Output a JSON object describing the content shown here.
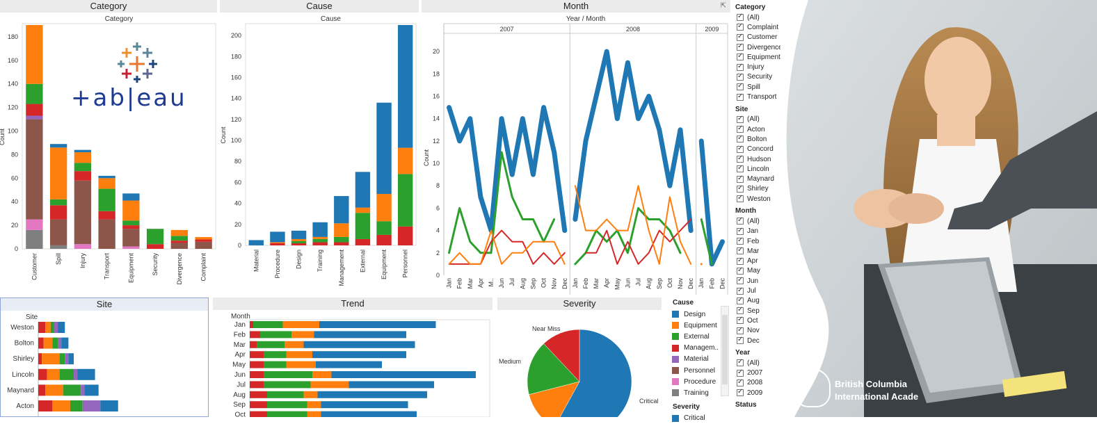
{
  "colors": {
    "Design": "#1f77b4",
    "Equipment": "#ff7f0e",
    "External": "#2ca02c",
    "Management": "#d62728",
    "Material": "#9467bd",
    "Personnel": "#8c564b",
    "Procedure": "#e377c2",
    "Training": "#7f7f7f",
    "panel_title_bg": "#ebebeb",
    "tableau_blue": "#1f3a93"
  },
  "logo": {
    "wordmark": "+ab|eau"
  },
  "category_panel": {
    "title": "Category",
    "chart_data": {
      "type": "bar",
      "subtitle": "Category",
      "ylabel": "Count",
      "ylim": [
        0,
        190
      ],
      "yticks": [
        "0",
        "20",
        "40",
        "60",
        "80",
        "100",
        "120",
        "140",
        "160",
        "180"
      ],
      "categories": [
        "Customer",
        "Spill",
        "Injury",
        "Transport",
        "Equipment",
        "Security",
        "Divergence",
        "Complaint"
      ],
      "series_order": [
        "Training",
        "Procedure",
        "Personnel",
        "Material",
        "Management",
        "External",
        "Equipment",
        "Design"
      ],
      "stacks": [
        {
          "Training": 16,
          "Procedure": 9,
          "Personnel": 85,
          "Material": 3,
          "Management": 10,
          "External": 17,
          "Equipment": 50
        },
        {
          "Training": 3,
          "Personnel": 22,
          "Management": 12,
          "External": 5,
          "Equipment": 44,
          "Design": 3
        },
        {
          "Procedure": 4,
          "Personnel": 54,
          "Management": 8,
          "External": 7,
          "Equipment": 9,
          "Design": 2
        },
        {
          "Personnel": 25,
          "Management": 7,
          "External": 19,
          "Equipment": 9,
          "Design": 2
        },
        {
          "Procedure": 2,
          "Personnel": 15,
          "Management": 3,
          "External": 4,
          "Equipment": 17,
          "Design": 6
        },
        {
          "Management": 4,
          "External": 13
        },
        {
          "Personnel": 5,
          "Management": 2,
          "External": 4,
          "Equipment": 5
        },
        {
          "Personnel": 6,
          "Management": 2,
          "Equipment": 2
        }
      ]
    }
  },
  "cause_panel": {
    "title": "Cause",
    "chart_data": {
      "type": "bar",
      "subtitle": "Cause",
      "ylabel": "Count",
      "ylim": [
        0,
        210
      ],
      "yticks": [
        "0",
        "20",
        "40",
        "60",
        "80",
        "100",
        "120",
        "140",
        "160",
        "180",
        "200"
      ],
      "categories": [
        "Material",
        "Procedure",
        "Design",
        "Training",
        "Management",
        "External",
        "Equipment",
        "Personnel"
      ],
      "series_order": [
        "Management",
        "External",
        "Equipment",
        "Design"
      ],
      "stacks": [
        {
          "Design": 5
        },
        {
          "Management": 2,
          "Equipment": 1,
          "Design": 10
        },
        {
          "Management": 2,
          "External": 2,
          "Equipment": 2,
          "Design": 8
        },
        {
          "Management": 3,
          "External": 3,
          "Equipment": 2,
          "Design": 14
        },
        {
          "Management": 3,
          "External": 5,
          "Equipment": 13,
          "Design": 26
        },
        {
          "Management": 6,
          "External": 25,
          "Equipment": 5,
          "Design": 34
        },
        {
          "Management": 10,
          "External": 13,
          "Equipment": 26,
          "Design": 87
        },
        {
          "Management": 18,
          "External": 50,
          "Equipment": 25,
          "Design": 117
        }
      ]
    }
  },
  "month_panel": {
    "title": "Month",
    "chart_data": {
      "type": "line",
      "subtitle": "Year  /  Month",
      "ylabel": "Count",
      "ylim": [
        0,
        21
      ],
      "yticks": [
        "0",
        "2",
        "4",
        "6",
        "8",
        "10",
        "12",
        "14",
        "16",
        "18",
        "20"
      ],
      "years": [
        {
          "label": "2007",
          "months": [
            "Jan",
            "Feb",
            "Mar",
            "Apr",
            "M..",
            "Jun",
            "Jul",
            "Aug",
            "Sep",
            "Oct",
            "Nov",
            "Dec"
          ]
        },
        {
          "label": "2008",
          "months": [
            "Jan",
            "Feb",
            "Mar",
            "Apr",
            "May",
            "Jun",
            "Jul",
            "Aug",
            "Sep",
            "Oct",
            "Nov",
            "Dec"
          ]
        },
        {
          "label": "2009",
          "months": [
            "Jan",
            "Feb",
            "Dec"
          ]
        }
      ],
      "series": [
        {
          "name": "Design",
          "width": 7,
          "values": [
            [
              15,
              12,
              14,
              7,
              4,
              14,
              9,
              14,
              9,
              15,
              11,
              4
            ],
            [
              5,
              12,
              16,
              20,
              14,
              19,
              14,
              16,
              13,
              8,
              13,
              4
            ],
            [
              12,
              1,
              3
            ]
          ]
        },
        {
          "name": "External",
          "width": 3,
          "values": [
            [
              2,
              6,
              3,
              2,
              2,
              11,
              7,
              5,
              5,
              3,
              5,
              null
            ],
            [
              1,
              2,
              4,
              3,
              4,
              2,
              6,
              5,
              5,
              4,
              2,
              null
            ],
            [
              5,
              1,
              null
            ]
          ]
        },
        {
          "name": "Management",
          "width": 2,
          "values": [
            [
              1,
              1,
              1,
              1,
              3,
              4,
              3,
              3,
              1,
              2,
              1,
              2
            ],
            [
              null,
              2,
              2,
              4,
              1,
              3,
              1,
              2,
              4,
              3,
              4,
              5
            ],
            [
              null,
              null,
              null
            ]
          ]
        },
        {
          "name": "Equipment",
          "width": 2,
          "values": [
            [
              1,
              2,
              1,
              1,
              4,
              1,
              2,
              2,
              3,
              3,
              3,
              1
            ],
            [
              8,
              4,
              4,
              5,
              4,
              4,
              8,
              4,
              1,
              7,
              3,
              1
            ],
            [
              1,
              null,
              null
            ]
          ]
        }
      ]
    }
  },
  "site_panel": {
    "title": "Site",
    "chart_data": {
      "type": "bar",
      "orientation": "horizontal",
      "subtitle": "Site",
      "categories": [
        "Weston",
        "Bolton",
        "Shirley",
        "Lincoln",
        "Maynard",
        "Acton"
      ],
      "series_order": [
        "Management",
        "Equipment",
        "External",
        "Material",
        "Design"
      ],
      "stacks": [
        {
          "Management": 4,
          "Equipment": 3,
          "External": 2,
          "Material": 2,
          "Design": 4
        },
        {
          "Management": 3,
          "Equipment": 5,
          "External": 3,
          "Material": 2,
          "Design": 4
        },
        {
          "Management": 2,
          "Equipment": 10,
          "External": 3,
          "Material": 2,
          "Design": 3
        },
        {
          "Management": 5,
          "Equipment": 7,
          "External": 8,
          "Material": 2,
          "Design": 10
        },
        {
          "Management": 4,
          "Equipment": 10,
          "External": 10,
          "Material": 2,
          "Design": 8
        },
        {
          "Management": 8,
          "Equipment": 10,
          "External": 7,
          "Material": 10,
          "Design": 10
        }
      ]
    }
  },
  "trend_panel": {
    "title": "Trend",
    "chart_data": {
      "type": "bar",
      "orientation": "horizontal",
      "subtitle": "Month",
      "categories": [
        "Jan",
        "Feb",
        "Mar",
        "Apr",
        "May",
        "Jun",
        "Jul",
        "Aug",
        "Sep",
        "Oct"
      ],
      "series_order": [
        "Management",
        "External",
        "Equipment",
        "Design"
      ],
      "stacks": [
        {
          "Management": 2,
          "External": 17,
          "Equipment": 21,
          "Design": 67
        },
        {
          "Management": 6,
          "External": 18,
          "Equipment": 13,
          "Design": 53
        },
        {
          "Management": 4,
          "External": 16,
          "Equipment": 11,
          "Design": 64
        },
        {
          "Management": 8,
          "External": 13,
          "Equipment": 15,
          "Design": 54
        },
        {
          "Management": 8,
          "External": 13,
          "Equipment": 17,
          "Design": 38
        },
        {
          "Management": 8,
          "External": 28,
          "Equipment": 11,
          "Design": 83
        },
        {
          "Management": 8,
          "External": 27,
          "Equipment": 22,
          "Design": 49
        },
        {
          "Management": 10,
          "External": 21,
          "Equipment": 8,
          "Design": 63
        },
        {
          "Management": 10,
          "External": 23,
          "Equipment": 8,
          "Design": 50
        },
        {
          "Management": 10,
          "External": 23,
          "Equipment": 8,
          "Design": 55
        }
      ]
    }
  },
  "severity_panel": {
    "title": "Severity",
    "chart_data": {
      "type": "pie",
      "slices": [
        {
          "name": "Critical",
          "value": 58,
          "color": "#1f77b4"
        },
        {
          "name": "",
          "value": 13,
          "color": "#ff7f0e"
        },
        {
          "name": "Medium",
          "value": 17,
          "color": "#2ca02c"
        },
        {
          "name": "Near Miss",
          "value": 12,
          "color": "#d62728"
        }
      ]
    }
  },
  "cause_legend": {
    "title": "Cause",
    "items": [
      {
        "label": "Design",
        "color": "#1f77b4"
      },
      {
        "label": "Equipment",
        "color": "#ff7f0e"
      },
      {
        "label": "External",
        "color": "#2ca02c"
      },
      {
        "label": "Managem..",
        "color": "#d62728"
      },
      {
        "label": "Material",
        "color": "#9467bd"
      },
      {
        "label": "Personnel",
        "color": "#8c564b"
      },
      {
        "label": "Procedure",
        "color": "#e377c2"
      },
      {
        "label": "Training",
        "color": "#7f7f7f"
      }
    ],
    "severity_title": "Severity",
    "severity_items": [
      {
        "label": "Critical",
        "color": "#1f77b4"
      }
    ]
  },
  "filters": [
    {
      "title": "Category",
      "items": [
        "(All)",
        "Complaint",
        "Customer",
        "Divergence",
        "Equipment",
        "Injury",
        "Security",
        "Spill",
        "Transport"
      ]
    },
    {
      "title": "Site",
      "items": [
        "(All)",
        "Acton",
        "Bolton",
        "Concord",
        "Hudson",
        "Lincoln",
        "Maynard",
        "Shirley",
        "Weston"
      ]
    },
    {
      "title": "Month",
      "items": [
        "(All)",
        "Jan",
        "Feb",
        "Mar",
        "Apr",
        "May",
        "Jun",
        "Jul",
        "Aug",
        "Sep",
        "Oct",
        "Nov",
        "Dec"
      ]
    },
    {
      "title": "Year",
      "items": [
        "(All)",
        "2007",
        "2008",
        "2009"
      ]
    },
    {
      "title": "Status",
      "items": []
    }
  ],
  "brand": {
    "line1": "British Columbia",
    "line2": "International Acade"
  }
}
